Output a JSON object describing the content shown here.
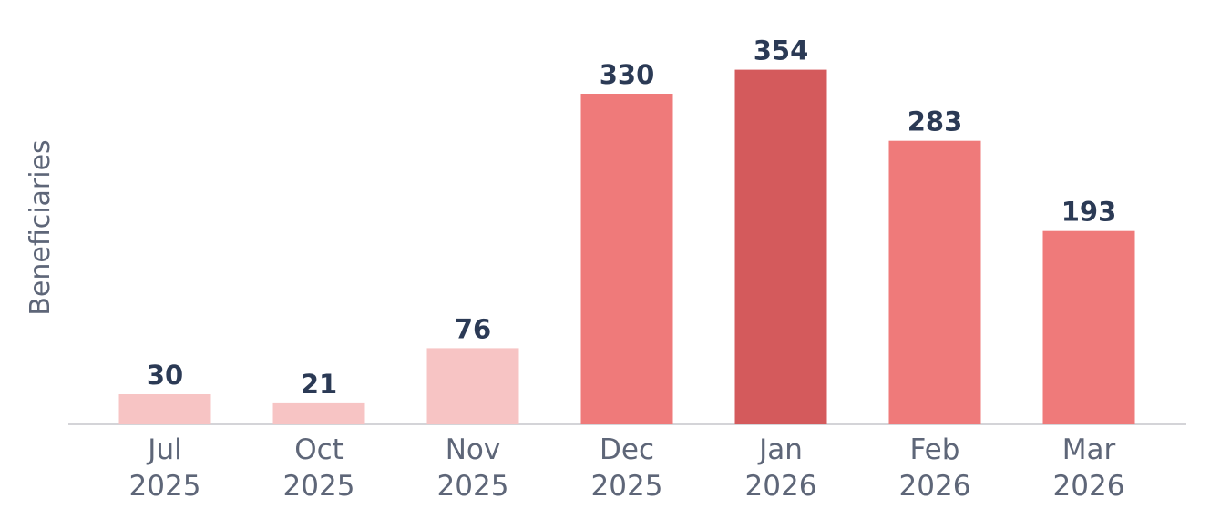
{
  "chart_data": {
    "type": "bar",
    "y_label": "Beneficiaries",
    "categories": [
      [
        "Jul",
        "2025"
      ],
      [
        "Oct",
        "2025"
      ],
      [
        "Nov",
        "2025"
      ],
      [
        "Dec",
        "2025"
      ],
      [
        "Jan",
        "2026"
      ],
      [
        "Feb",
        "2026"
      ],
      [
        "Mar",
        "2026"
      ]
    ],
    "values": [
      30,
      21,
      76,
      330,
      354,
      283,
      193
    ],
    "colors": [
      "#f7c4c4",
      "#f7c4c4",
      "#f7c4c4",
      "#ef7a7a",
      "#d45a5c",
      "#ef7a7a",
      "#ef7a7a"
    ],
    "ylim": [
      0,
      400
    ]
  }
}
